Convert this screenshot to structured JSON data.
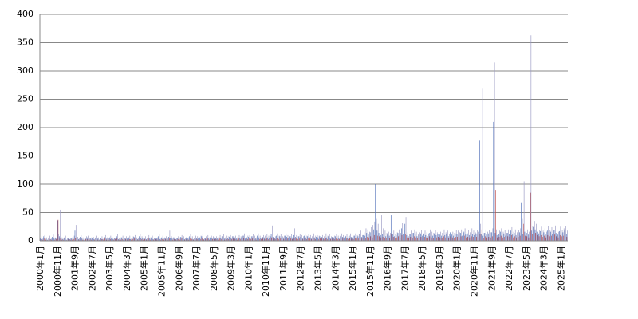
{
  "chart_data": {
    "type": "bar",
    "grid": true,
    "ylim": [
      0,
      400
    ],
    "yticks": [
      0,
      50,
      100,
      150,
      200,
      250,
      300,
      350,
      400
    ],
    "categories": [
      "2000年1月",
      null,
      null,
      null,
      null,
      null,
      null,
      null,
      null,
      null,
      "2000年11月",
      null,
      null,
      null,
      null,
      null,
      null,
      null,
      null,
      null,
      "2001年9月",
      null,
      null,
      null,
      null,
      null,
      null,
      null,
      null,
      null,
      "2002年7月",
      null,
      null,
      null,
      null,
      null,
      null,
      null,
      null,
      null,
      "2003年5月",
      null,
      null,
      null,
      null,
      null,
      null,
      null,
      null,
      null,
      "2004年3月",
      null,
      null,
      null,
      null,
      null,
      null,
      null,
      null,
      null,
      "2005年1月",
      null,
      null,
      null,
      null,
      null,
      null,
      null,
      null,
      null,
      "2005年11月",
      null,
      null,
      null,
      null,
      null,
      null,
      null,
      null,
      null,
      "2006年9月",
      null,
      null,
      null,
      null,
      null,
      null,
      null,
      null,
      null,
      "2007年7月",
      null,
      null,
      null,
      null,
      null,
      null,
      null,
      null,
      null,
      "2008年5月",
      null,
      null,
      null,
      null,
      null,
      null,
      null,
      null,
      null,
      "2009年3月",
      null,
      null,
      null,
      null,
      null,
      null,
      null,
      null,
      null,
      "2010年1月",
      null,
      null,
      null,
      null,
      null,
      null,
      null,
      null,
      null,
      "2010年11月",
      null,
      null,
      null,
      null,
      null,
      null,
      null,
      null,
      null,
      "2011年9月",
      null,
      null,
      null,
      null,
      null,
      null,
      null,
      null,
      null,
      "2012年7月",
      null,
      null,
      null,
      null,
      null,
      null,
      null,
      null,
      null,
      "2013年5月",
      null,
      null,
      null,
      null,
      null,
      null,
      null,
      null,
      null,
      "2014年3月",
      null,
      null,
      null,
      null,
      null,
      null,
      null,
      null,
      null,
      "2015年1月",
      null,
      null,
      null,
      null,
      null,
      null,
      null,
      null,
      null,
      "2015年11月",
      null,
      null,
      null,
      null,
      null,
      null,
      null,
      null,
      null,
      "2016年9月",
      null,
      null,
      null,
      null,
      null,
      null,
      null,
      null,
      null,
      "2017年7月",
      null,
      null,
      null,
      null,
      null,
      null,
      null,
      null,
      null,
      "2018年5月",
      null,
      null,
      null,
      null,
      null,
      null,
      null,
      null,
      null,
      "2019年3月",
      null,
      null,
      null,
      null,
      null,
      null,
      null,
      null,
      null,
      "2020年1月",
      null,
      null,
      null,
      null,
      null,
      null,
      null,
      null,
      null,
      "2020年11月",
      null,
      null,
      null,
      null,
      null,
      null,
      null,
      null,
      null,
      "2021年9月",
      null,
      null,
      null,
      null,
      null,
      null,
      null,
      null,
      null,
      "2022年7月",
      null,
      null,
      null,
      null,
      null,
      null,
      null,
      null,
      null,
      "2023年5月",
      null,
      null,
      null,
      null,
      null,
      null,
      null,
      null,
      null,
      "2024年3月",
      null,
      null,
      null,
      null,
      null,
      null,
      null,
      null,
      null,
      "2025年1月",
      null,
      null,
      null
    ],
    "series": [
      {
        "color": "#4f6fb8",
        "values": [
          5,
          3,
          8,
          4,
          2,
          6,
          3,
          7,
          4,
          5,
          36,
          8,
          4,
          3,
          6,
          2,
          5,
          3,
          4,
          6,
          18,
          5,
          3,
          7,
          4,
          2,
          5,
          6,
          3,
          4,
          5,
          3,
          6,
          4,
          2,
          5,
          3,
          7,
          4,
          3,
          6,
          4,
          3,
          5,
          8,
          3,
          4,
          6,
          2,
          5,
          4,
          6,
          3,
          5,
          7,
          4,
          3,
          8,
          5,
          4,
          5,
          3,
          7,
          4,
          6,
          3,
          5,
          4,
          8,
          3,
          6,
          4,
          5,
          3,
          7,
          5,
          4,
          6,
          3,
          5,
          4,
          7,
          5,
          3,
          6,
          4,
          8,
          5,
          3,
          6,
          5,
          4,
          6,
          8,
          3,
          5,
          7,
          4,
          6,
          5,
          6,
          5,
          4,
          7,
          5,
          8,
          4,
          6,
          5,
          7,
          5,
          8,
          6,
          4,
          7,
          5,
          6,
          9,
          4,
          6,
          7,
          5,
          8,
          6,
          4,
          9,
          6,
          5,
          7,
          6,
          8,
          6,
          5,
          12,
          7,
          5,
          9,
          6,
          8,
          5,
          6,
          9,
          7,
          5,
          8,
          6,
          10,
          7,
          5,
          8,
          7,
          5,
          9,
          6,
          8,
          7,
          5,
          9,
          6,
          7,
          6,
          8,
          7,
          5,
          9,
          6,
          8,
          5,
          7,
          6,
          8,
          6,
          5,
          9,
          7,
          6,
          8,
          5,
          9,
          7,
          6,
          9,
          7,
          8,
          12,
          7,
          10,
          9,
          14,
          11,
          15,
          12,
          20,
          100,
          18,
          14,
          10,
          12,
          9,
          8,
          11,
          9,
          45,
          12,
          8,
          10,
          14,
          9,
          22,
          12,
          30,
          10,
          8,
          12,
          9,
          14,
          11,
          8,
          10,
          13,
          9,
          12,
          10,
          8,
          14,
          11,
          9,
          13,
          10,
          12,
          11,
          9,
          14,
          10,
          12,
          8,
          15,
          11,
          9,
          13,
          12,
          10,
          14,
          9,
          16,
          11,
          13,
          10,
          15,
          12,
          10,
          13,
          11,
          177,
          12,
          9,
          14,
          11,
          13,
          10,
          15,
          210,
          14,
          10,
          12,
          16,
          11,
          13,
          9,
          14,
          12,
          18,
          11,
          14,
          10,
          13,
          15,
          68,
          12,
          16,
          14,
          11,
          250,
          18,
          24,
          20,
          16,
          13,
          17,
          12,
          15,
          11,
          18,
          13,
          16,
          12,
          19,
          14,
          11,
          17,
          13,
          15,
          18,
          12
        ]
      },
      {
        "color": "#c0504d",
        "values": [
          3,
          2,
          4,
          2,
          1,
          3,
          2,
          4,
          2,
          3,
          37,
          4,
          2,
          2,
          3,
          1,
          3,
          2,
          2,
          3,
          5,
          3,
          2,
          4,
          2,
          1,
          3,
          3,
          2,
          2,
          3,
          2,
          3,
          2,
          1,
          3,
          2,
          4,
          2,
          2,
          3,
          2,
          2,
          3,
          4,
          2,
          2,
          3,
          1,
          3,
          2,
          3,
          2,
          3,
          4,
          2,
          2,
          4,
          3,
          2,
          3,
          2,
          4,
          2,
          3,
          2,
          3,
          2,
          4,
          2,
          3,
          2,
          3,
          2,
          4,
          3,
          2,
          3,
          2,
          3,
          2,
          4,
          3,
          2,
          3,
          2,
          4,
          3,
          2,
          3,
          3,
          2,
          3,
          4,
          2,
          3,
          4,
          2,
          3,
          3,
          3,
          3,
          2,
          4,
          3,
          4,
          2,
          3,
          3,
          4,
          3,
          4,
          3,
          2,
          4,
          3,
          3,
          5,
          2,
          3,
          4,
          3,
          4,
          3,
          2,
          5,
          3,
          3,
          4,
          3,
          4,
          3,
          3,
          6,
          4,
          3,
          5,
          3,
          4,
          3,
          3,
          5,
          4,
          3,
          4,
          3,
          5,
          4,
          3,
          4,
          4,
          3,
          5,
          3,
          4,
          4,
          3,
          5,
          3,
          4,
          3,
          4,
          4,
          3,
          5,
          3,
          4,
          3,
          4,
          3,
          4,
          3,
          3,
          5,
          4,
          3,
          4,
          3,
          5,
          4,
          3,
          5,
          4,
          4,
          6,
          4,
          5,
          5,
          7,
          6,
          8,
          6,
          10,
          14,
          9,
          8,
          6,
          7,
          5,
          5,
          6,
          5,
          12,
          7,
          5,
          6,
          8,
          5,
          10,
          7,
          12,
          6,
          5,
          7,
          5,
          8,
          6,
          5,
          6,
          7,
          5,
          7,
          6,
          5,
          8,
          6,
          5,
          7,
          6,
          7,
          6,
          5,
          8,
          6,
          7,
          5,
          8,
          6,
          5,
          7,
          7,
          6,
          8,
          5,
          9,
          6,
          7,
          6,
          8,
          7,
          6,
          7,
          6,
          12,
          20,
          5,
          8,
          6,
          7,
          6,
          8,
          22,
          90,
          6,
          7,
          9,
          6,
          7,
          5,
          8,
          7,
          10,
          6,
          8,
          6,
          7,
          9,
          15,
          30,
          9,
          8,
          6,
          85,
          12,
          18,
          14,
          10,
          8,
          10,
          7,
          9,
          6,
          10,
          8,
          9,
          7,
          11,
          8,
          6,
          10,
          8,
          9,
          11,
          7
        ]
      },
      {
        "color": "#9a9ac4",
        "values": [
          8,
          5,
          10,
          6,
          4,
          9,
          5,
          11,
          6,
          7,
          12,
          55,
          6,
          5,
          9,
          4,
          7,
          5,
          6,
          9,
          28,
          7,
          5,
          10,
          6,
          4,
          8,
          9,
          5,
          6,
          7,
          5,
          9,
          6,
          4,
          8,
          5,
          10,
          6,
          5,
          9,
          6,
          5,
          8,
          12,
          5,
          6,
          9,
          4,
          8,
          6,
          9,
          5,
          8,
          10,
          6,
          5,
          12,
          8,
          6,
          8,
          5,
          10,
          6,
          9,
          5,
          8,
          6,
          12,
          5,
          9,
          6,
          8,
          5,
          18,
          8,
          6,
          9,
          5,
          8,
          6,
          10,
          8,
          5,
          9,
          6,
          12,
          8,
          5,
          9,
          8,
          6,
          9,
          12,
          5,
          8,
          10,
          6,
          9,
          8,
          9,
          8,
          6,
          10,
          8,
          12,
          6,
          9,
          8,
          10,
          8,
          12,
          9,
          6,
          10,
          8,
          9,
          13,
          6,
          9,
          10,
          8,
          12,
          9,
          6,
          13,
          9,
          8,
          10,
          9,
          12,
          9,
          8,
          27,
          10,
          8,
          13,
          9,
          12,
          8,
          9,
          13,
          10,
          8,
          12,
          9,
          22,
          10,
          8,
          12,
          10,
          8,
          13,
          9,
          12,
          10,
          8,
          13,
          9,
          10,
          9,
          12,
          10,
          8,
          13,
          9,
          12,
          8,
          10,
          9,
          12,
          9,
          8,
          13,
          10,
          9,
          12,
          8,
          13,
          10,
          9,
          13,
          10,
          12,
          18,
          10,
          15,
          22,
          20,
          16,
          24,
          28,
          34,
          40,
          30,
          163,
          45,
          22,
          18,
          14,
          16,
          14,
          65,
          18,
          12,
          15,
          20,
          14,
          32,
          18,
          42,
          15,
          12,
          18,
          14,
          20,
          16,
          12,
          15,
          19,
          14,
          18,
          15,
          12,
          20,
          16,
          14,
          19,
          15,
          18,
          16,
          14,
          20,
          15,
          18,
          12,
          22,
          16,
          14,
          19,
          18,
          15,
          20,
          14,
          22,
          16,
          19,
          15,
          22,
          18,
          15,
          19,
          16,
          30,
          270,
          14,
          20,
          16,
          19,
          15,
          22,
          315,
          20,
          15,
          18,
          22,
          16,
          19,
          14,
          20,
          18,
          24,
          16,
          20,
          15,
          19,
          22,
          40,
          105,
          22,
          20,
          16,
          363,
          26,
          35,
          30,
          24,
          19,
          25,
          18,
          22,
          16,
          26,
          19,
          24,
          18,
          27,
          20,
          16,
          25,
          19,
          22,
          26,
          18
        ]
      }
    ]
  }
}
